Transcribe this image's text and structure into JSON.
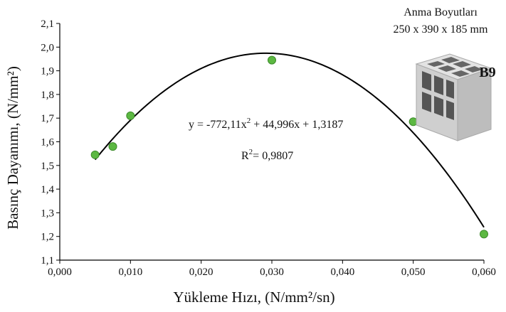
{
  "chart_data": {
    "type": "scatter",
    "xlabel": "Yükleme Hızı, (N/mm²/sn)",
    "ylabel": "Basınç Dayanımı, (N/mm²)",
    "xlim": [
      0.0,
      0.06
    ],
    "ylim": [
      1.1,
      2.1
    ],
    "x_ticks": [
      "0,000",
      "0,010",
      "0,020",
      "0,030",
      "0,040",
      "0,050",
      "0,060"
    ],
    "y_ticks": [
      "1,1",
      "1,2",
      "1,3",
      "1,4",
      "1,5",
      "1,6",
      "1,7",
      "1,8",
      "1,9",
      "2,0",
      "2,1"
    ],
    "grid": false,
    "points": [
      {
        "x": 0.005,
        "y": 1.545
      },
      {
        "x": 0.0075,
        "y": 1.58
      },
      {
        "x": 0.01,
        "y": 1.71
      },
      {
        "x": 0.03,
        "y": 1.945
      },
      {
        "x": 0.05,
        "y": 1.685
      },
      {
        "x": 0.06,
        "y": 1.21
      }
    ],
    "marker_color": "#5cb842",
    "trendline": {
      "type": "polynomial",
      "coefficients": [
        -772.11,
        44.996,
        1.3187
      ],
      "x_range": [
        0.005,
        0.06
      ],
      "color": "#000000"
    },
    "annotations": {
      "equation_main": "y = -772,11x",
      "equation_exp": "2",
      "equation_rest": " + 44,996x + 1,3187",
      "r2_prefix": "R",
      "r2_exp": "2",
      "r2_value": "= 0,9807",
      "dimensions_title": "Anma Boyutları",
      "dimensions_value": "250 x 390 x 185 mm",
      "block_label": "B9"
    }
  }
}
